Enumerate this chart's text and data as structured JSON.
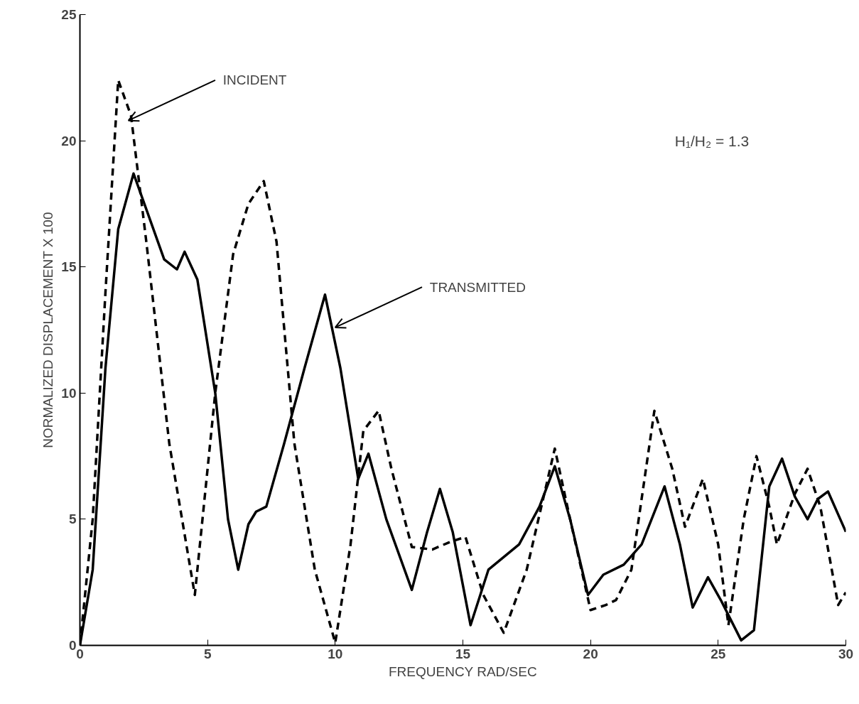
{
  "chart_data": {
    "type": "line",
    "xlabel": "FREQUENCY RAD/SEC",
    "ylabel": "NORMALIZED DISPLACEMENT X 100",
    "xlim": [
      0,
      30
    ],
    "ylim": [
      0,
      25
    ],
    "xticks": [
      0,
      5,
      10,
      15,
      20,
      25,
      30
    ],
    "yticks": [
      0,
      5,
      10,
      15,
      20,
      25
    ],
    "grid": false,
    "series": [
      {
        "color": "#000000",
        "line_style": "dashed",
        "x": [
          0,
          0.5,
          1.0,
          1.5,
          2.0,
          2.6,
          3.5,
          4.5,
          5.3,
          6.0,
          6.6,
          7.2,
          7.7,
          8.4,
          9.2,
          10.0,
          10.6,
          11.1,
          11.7,
          12.2,
          13.0,
          13.8,
          14.5,
          15.1,
          15.8,
          16.6,
          17.5,
          18.6,
          19.2,
          20.0,
          20.6,
          21.0,
          21.6,
          22.5,
          23.2,
          23.7,
          24.4,
          25.0,
          25.4,
          26.0,
          26.5,
          27.0,
          27.3,
          28.0,
          28.5,
          29.0,
          29.7,
          30.0
        ],
        "values": [
          0,
          5,
          14,
          22.4,
          21.0,
          16,
          8,
          2.0,
          10,
          15.5,
          17.5,
          18.4,
          16,
          8,
          3,
          0.1,
          4,
          8.5,
          9.3,
          7,
          3.9,
          3.8,
          4.1,
          4.3,
          2,
          0.5,
          3,
          7.8,
          5,
          1.4,
          1.6,
          1.8,
          3,
          9.3,
          7,
          4.7,
          6.6,
          4,
          0.8,
          5,
          7.5,
          5.5,
          4.0,
          6,
          7.0,
          5.5,
          1.6,
          2.1
        ]
      },
      {
        "color": "#000000",
        "line_style": "solid",
        "x": [
          0,
          0.5,
          1.0,
          1.5,
          2.1,
          2.7,
          3.3,
          3.8,
          4.1,
          4.6,
          5.3,
          5.8,
          6.2,
          6.6,
          6.9,
          7.3,
          8.0,
          8.8,
          9.6,
          10.2,
          10.9,
          11.3,
          12.0,
          13.0,
          13.6,
          14.1,
          14.6,
          15.3,
          16.0,
          17.2,
          18.0,
          18.6,
          19.2,
          19.9,
          20.5,
          21.3,
          22.0,
          22.9,
          23.5,
          24.0,
          24.6,
          25.1,
          25.9,
          26.4,
          27.0,
          27.5,
          28.0,
          28.5,
          28.9,
          29.3,
          30.0
        ],
        "values": [
          0,
          3,
          11,
          16.5,
          18.7,
          17,
          15.3,
          14.9,
          15.6,
          14.5,
          10,
          5,
          3.0,
          4.8,
          5.3,
          5.5,
          8,
          11,
          13.9,
          11,
          6.6,
          7.6,
          5,
          2.2,
          4.5,
          6.2,
          4.5,
          0.8,
          3.0,
          4.0,
          5.5,
          7.1,
          5,
          2.0,
          2.8,
          3.2,
          4,
          6.3,
          4,
          1.5,
          2.7,
          1.8,
          0.2,
          0.6,
          6.3,
          7.4,
          5.9,
          5.0,
          5.8,
          6.1,
          4.5
        ]
      }
    ],
    "annotations": [
      {
        "text": "INCIDENT",
        "x": 1.9,
        "y": 20.8
      },
      {
        "text": "TRANSMITTED",
        "x": 10.0,
        "y": 12.6
      },
      "H₁/H₂ = 1.3"
    ]
  }
}
